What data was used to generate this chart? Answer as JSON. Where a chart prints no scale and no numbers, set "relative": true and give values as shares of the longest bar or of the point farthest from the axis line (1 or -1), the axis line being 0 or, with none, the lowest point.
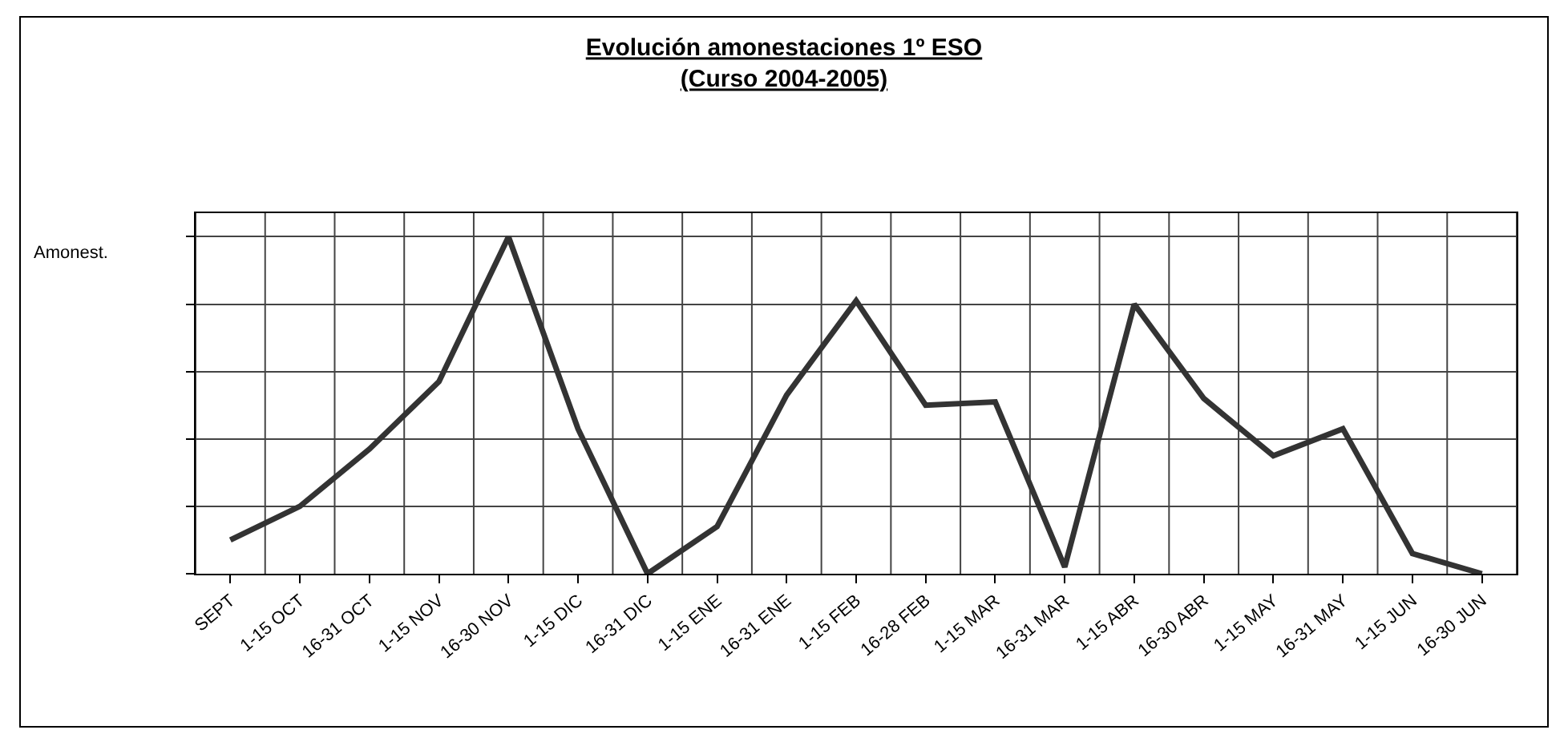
{
  "chart_data": {
    "type": "line",
    "title": "Evolución amonestaciones 1º ESO",
    "subtitle": "(Curso 2004-2005)",
    "ylabel": "Amonest.",
    "categories": [
      "SEPT",
      "1-15 OCT",
      "16-31 OCT",
      "1-15 NOV",
      "16-30 NOV",
      "1-15 DIC",
      "16-31 DIC",
      "1-15 ENE",
      "16-31 ENE",
      "1-15 FEB",
      "16-28 FEB",
      "1-15 MAR",
      "16-31 MAR",
      "1-15 ABR",
      "16-30 ABR",
      "1-15 MAY",
      "16-31 MAY",
      "1-15 JUN",
      "16-30 JUN"
    ],
    "values": [
      0.1,
      0.2,
      0.37,
      0.57,
      1,
      0.43,
      0,
      0.14,
      0.53,
      0.81,
      0.5,
      0.51,
      0.02,
      0.8,
      0.52,
      0.35,
      0.43,
      0.06,
      0
    ],
    "color": "#333333",
    "relative": true,
    "grid": true
  }
}
